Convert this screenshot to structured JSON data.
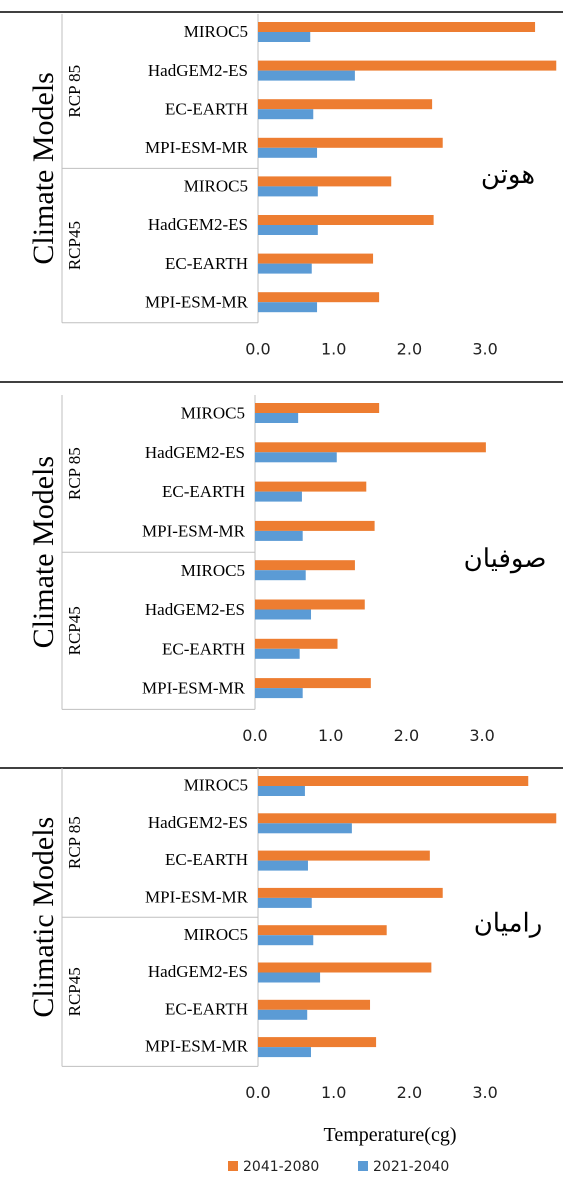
{
  "chart_data": [
    {
      "type": "bar",
      "orientation": "horizontal",
      "y_label": "Climate Models",
      "annotation": "هوتن",
      "groups": [
        {
          "label": "RCP 85",
          "categories": [
            "MIROC5",
            "HadGEM2-ES",
            "EC-EARTH",
            "MPI-ESM-MR"
          ]
        },
        {
          "label": "RCP45",
          "categories": [
            "MIROC5",
            "HadGEM2-ES",
            "EC-EARTH",
            "MPI-ESM-MR"
          ]
        }
      ],
      "series": [
        {
          "color": "#ed7d31",
          "values": [
            3.66,
            3.94,
            2.3,
            2.44,
            1.76,
            2.32,
            1.52,
            1.6
          ]
        },
        {
          "color": "#5b9bd5",
          "values": [
            0.69,
            1.28,
            0.73,
            0.78,
            0.79,
            0.79,
            0.71,
            0.78
          ]
        }
      ],
      "xlim": [
        0,
        4
      ],
      "xticks": [
        {
          "value": 0,
          "label": "0.0"
        },
        {
          "value": 1,
          "label": "1.0"
        },
        {
          "value": 2,
          "label": "2.0"
        },
        {
          "value": 3,
          "label": "3.0"
        }
      ]
    },
    {
      "type": "bar",
      "orientation": "horizontal",
      "y_label": "Climate Models",
      "annotation": "صوفیان",
      "groups": [
        {
          "label": "RCP 85",
          "categories": [
            "MIROC5",
            "HadGEM2-ES",
            "EC-EARTH",
            "MPI-ESM-MR"
          ]
        },
        {
          "label": "RCP45",
          "categories": [
            "MIROC5",
            "HadGEM2-ES",
            "EC-EARTH",
            "MPI-ESM-MR"
          ]
        }
      ],
      "series": [
        {
          "color": "#ed7d31",
          "values": [
            1.64,
            3.05,
            1.47,
            1.58,
            1.32,
            1.45,
            1.09,
            1.53
          ]
        },
        {
          "color": "#5b9bd5",
          "values": [
            0.57,
            1.08,
            0.62,
            0.63,
            0.67,
            0.74,
            0.59,
            0.63
          ]
        }
      ],
      "xlim": [
        0,
        4
      ],
      "xticks": [
        {
          "value": 0,
          "label": "0.0"
        },
        {
          "value": 1,
          "label": "1.0"
        },
        {
          "value": 2,
          "label": "2.0"
        },
        {
          "value": 3,
          "label": "3.0"
        }
      ]
    },
    {
      "type": "bar",
      "orientation": "horizontal",
      "y_label": "Climatic Models",
      "annotation": "رامیان",
      "x_label": "Temperature(cg)",
      "groups": [
        {
          "label": "RCP 85",
          "categories": [
            "MIROC5",
            "HadGEM2-ES",
            "EC-EARTH",
            "MPI-ESM-MR"
          ]
        },
        {
          "label": "RCP45",
          "categories": [
            "MIROC5",
            "HadGEM2-ES",
            "EC-EARTH",
            "MPI-ESM-MR"
          ]
        }
      ],
      "series": [
        {
          "name": "2041-2080",
          "color": "#ed7d31",
          "values": [
            3.57,
            3.94,
            2.27,
            2.44,
            1.7,
            2.29,
            1.48,
            1.56
          ]
        },
        {
          "name": "2021-2040",
          "color": "#5b9bd5",
          "values": [
            0.62,
            1.24,
            0.66,
            0.71,
            0.73,
            0.82,
            0.65,
            0.7
          ]
        }
      ],
      "xlim": [
        0,
        4
      ],
      "xticks": [
        {
          "value": 0,
          "label": "0.0"
        },
        {
          "value": 1,
          "label": "1.0"
        },
        {
          "value": 2,
          "label": "2.0"
        },
        {
          "value": 3,
          "label": "3.0"
        }
      ],
      "legend": "bottom"
    }
  ]
}
